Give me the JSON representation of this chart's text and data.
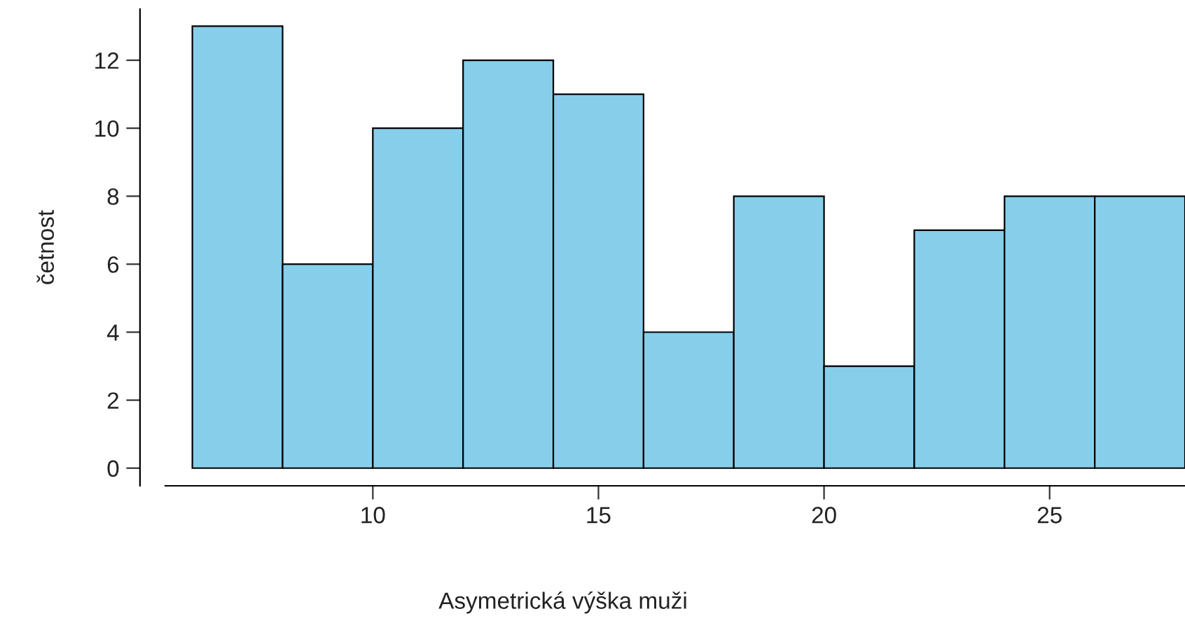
{
  "chart_data": {
    "type": "histogram",
    "xlabel": "Asymetrická výška muži",
    "ylabel": "četnost",
    "bins": [
      6,
      8,
      10,
      12,
      14,
      16,
      18,
      20,
      22,
      24,
      26,
      28
    ],
    "values": [
      13,
      6,
      10,
      12,
      11,
      4,
      8,
      3,
      7,
      8,
      8
    ],
    "color": "#87ceeb",
    "xlim": [
      5.4,
      28
    ],
    "xticks": [
      10,
      15,
      20,
      25
    ],
    "ylim": [
      -0.52,
      13.5
    ],
    "yticks": [
      0,
      2,
      4,
      6,
      8,
      10,
      12
    ],
    "grid": false
  }
}
